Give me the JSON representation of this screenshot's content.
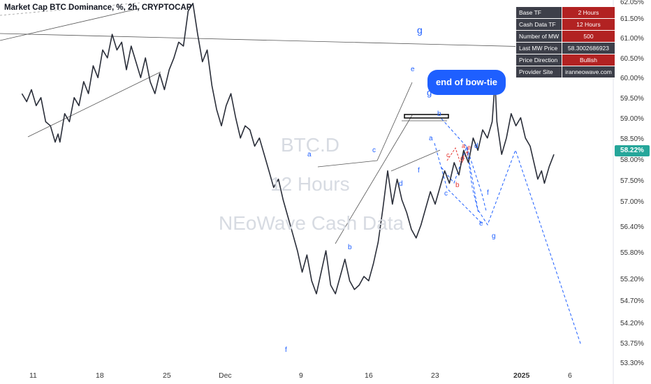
{
  "title": "Market Cap BTC Dominance, %, 2h, CRYPTOCAP",
  "watermark": {
    "line1": "BTC.D",
    "line2": "12 Hours",
    "line3": "NEoWave Cash Data"
  },
  "callout": "end of bow-tie",
  "info_table": [
    {
      "key": "Base TF",
      "value": "2 Hours"
    },
    {
      "key": "Cash Data TF",
      "value": "12 Hours"
    },
    {
      "key": "Number of MW",
      "value": "500"
    },
    {
      "key": "Last MW Price",
      "value": "58.3002686923"
    },
    {
      "key": "Price Direction",
      "value": "Bullish"
    },
    {
      "key": "Provider Site",
      "value": "iranneowave.com"
    }
  ],
  "current_price": "58.22%",
  "colors": {
    "price_line": "#2a2e39",
    "wave_blue": "#1e5fff",
    "wave_red": "#e53935",
    "badge": "#26a69a"
  },
  "chart_data": {
    "type": "line",
    "title": "Market Cap BTC Dominance, %, 2h, CRYPTOCAP",
    "y_axis": {
      "scale": "log",
      "range": [
        53.3,
        62.05
      ],
      "ticks": [
        "62.05%",
        "61.50%",
        "61.00%",
        "60.50%",
        "60.00%",
        "59.50%",
        "59.00%",
        "58.50%",
        "58.00%",
        "57.50%",
        "57.00%",
        "56.40%",
        "55.80%",
        "55.20%",
        "54.70%",
        "54.20%",
        "53.75%",
        "53.30%"
      ]
    },
    "x_axis": {
      "ticks": [
        "11",
        "18",
        "25",
        "Dec",
        "9",
        "16",
        "23",
        "2025",
        "6"
      ]
    },
    "series": [
      {
        "values": [
          [
            -1,
            59.7
          ],
          [
            -0.5,
            59.5
          ],
          [
            0,
            59.8
          ],
          [
            0.5,
            59.4
          ],
          [
            1,
            59.6
          ],
          [
            1.5,
            59.0
          ],
          [
            2,
            58.9
          ],
          [
            2.5,
            58.5
          ],
          [
            2.8,
            58.7
          ],
          [
            3,
            58.5
          ],
          [
            3.5,
            59.2
          ],
          [
            4,
            59.0
          ],
          [
            4.5,
            59.6
          ],
          [
            5,
            59.4
          ],
          [
            5.5,
            60.0
          ],
          [
            6,
            59.7
          ],
          [
            6.5,
            60.4
          ],
          [
            7,
            60.1
          ],
          [
            7.5,
            60.8
          ],
          [
            8,
            60.6
          ],
          [
            8.5,
            61.2
          ],
          [
            9,
            60.8
          ],
          [
            9.5,
            61.0
          ],
          [
            10,
            60.3
          ],
          [
            10.5,
            60.9
          ],
          [
            11,
            60.5
          ],
          [
            11.5,
            60.1
          ],
          [
            12,
            60.6
          ],
          [
            12.5,
            60.0
          ],
          [
            13,
            59.7
          ],
          [
            13.5,
            60.2
          ],
          [
            14,
            59.8
          ],
          [
            14.5,
            60.3
          ],
          [
            15,
            60.6
          ],
          [
            15.5,
            61.0
          ],
          [
            16,
            60.9
          ],
          [
            16.5,
            61.8
          ],
          [
            17,
            62.0
          ],
          [
            17.5,
            61.2
          ],
          [
            18,
            60.5
          ],
          [
            18.5,
            60.8
          ],
          [
            19,
            59.9
          ],
          [
            19.5,
            59.3
          ],
          [
            20,
            58.9
          ],
          [
            20.5,
            59.4
          ],
          [
            21,
            59.7
          ],
          [
            21.5,
            59.1
          ],
          [
            22,
            58.6
          ],
          [
            22.5,
            58.9
          ],
          [
            23,
            58.8
          ],
          [
            23.5,
            58.4
          ],
          [
            24,
            58.6
          ],
          [
            24.5,
            58.2
          ],
          [
            25,
            57.8
          ],
          [
            25.5,
            57.4
          ],
          [
            26,
            57.6
          ],
          [
            26.5,
            57.1
          ],
          [
            27,
            56.7
          ],
          [
            27.5,
            56.3
          ],
          [
            28,
            55.9
          ],
          [
            28.5,
            55.4
          ],
          [
            29,
            55.8
          ],
          [
            29.5,
            55.2
          ],
          [
            30,
            54.9
          ],
          [
            30.5,
            55.4
          ],
          [
            31,
            55.9
          ],
          [
            31.5,
            55.1
          ],
          [
            32,
            54.9
          ],
          [
            32.5,
            55.3
          ],
          [
            33,
            55.7
          ],
          [
            33.5,
            55.2
          ],
          [
            34,
            55.0
          ],
          [
            34.5,
            55.1
          ],
          [
            35,
            55.3
          ],
          [
            35.5,
            55.2
          ],
          [
            36,
            55.6
          ],
          [
            36.5,
            56.1
          ],
          [
            37,
            56.9
          ],
          [
            37.5,
            57.8
          ],
          [
            38,
            57.0
          ],
          [
            38.5,
            57.6
          ],
          [
            39,
            57.1
          ],
          [
            39.5,
            56.8
          ],
          [
            40,
            56.4
          ],
          [
            40.5,
            56.2
          ],
          [
            41,
            56.5
          ],
          [
            41.5,
            56.9
          ],
          [
            42,
            57.3
          ],
          [
            42.5,
            57.0
          ],
          [
            43,
            57.4
          ],
          [
            43.5,
            57.8
          ],
          [
            44,
            57.5
          ],
          [
            44.5,
            58.0
          ],
          [
            45,
            57.7
          ],
          [
            45.5,
            58.3
          ],
          [
            46,
            58.0
          ],
          [
            46.5,
            58.6
          ],
          [
            47,
            58.3
          ],
          [
            47.5,
            58.8
          ],
          [
            48,
            58.6
          ],
          [
            48.5,
            59.0
          ],
          [
            48.8,
            60.0
          ],
          [
            49,
            59.0
          ],
          [
            49.5,
            58.2
          ],
          [
            50,
            58.6
          ],
          [
            50.5,
            59.2
          ],
          [
            51,
            58.9
          ],
          [
            51.5,
            59.1
          ],
          [
            52,
            58.6
          ],
          [
            52.5,
            58.4
          ],
          [
            53,
            57.9
          ],
          [
            53.3,
            57.6
          ],
          [
            53.7,
            57.8
          ],
          [
            54,
            57.5
          ],
          [
            54.5,
            57.9
          ],
          [
            55,
            58.2
          ]
        ]
      }
    ]
  }
}
